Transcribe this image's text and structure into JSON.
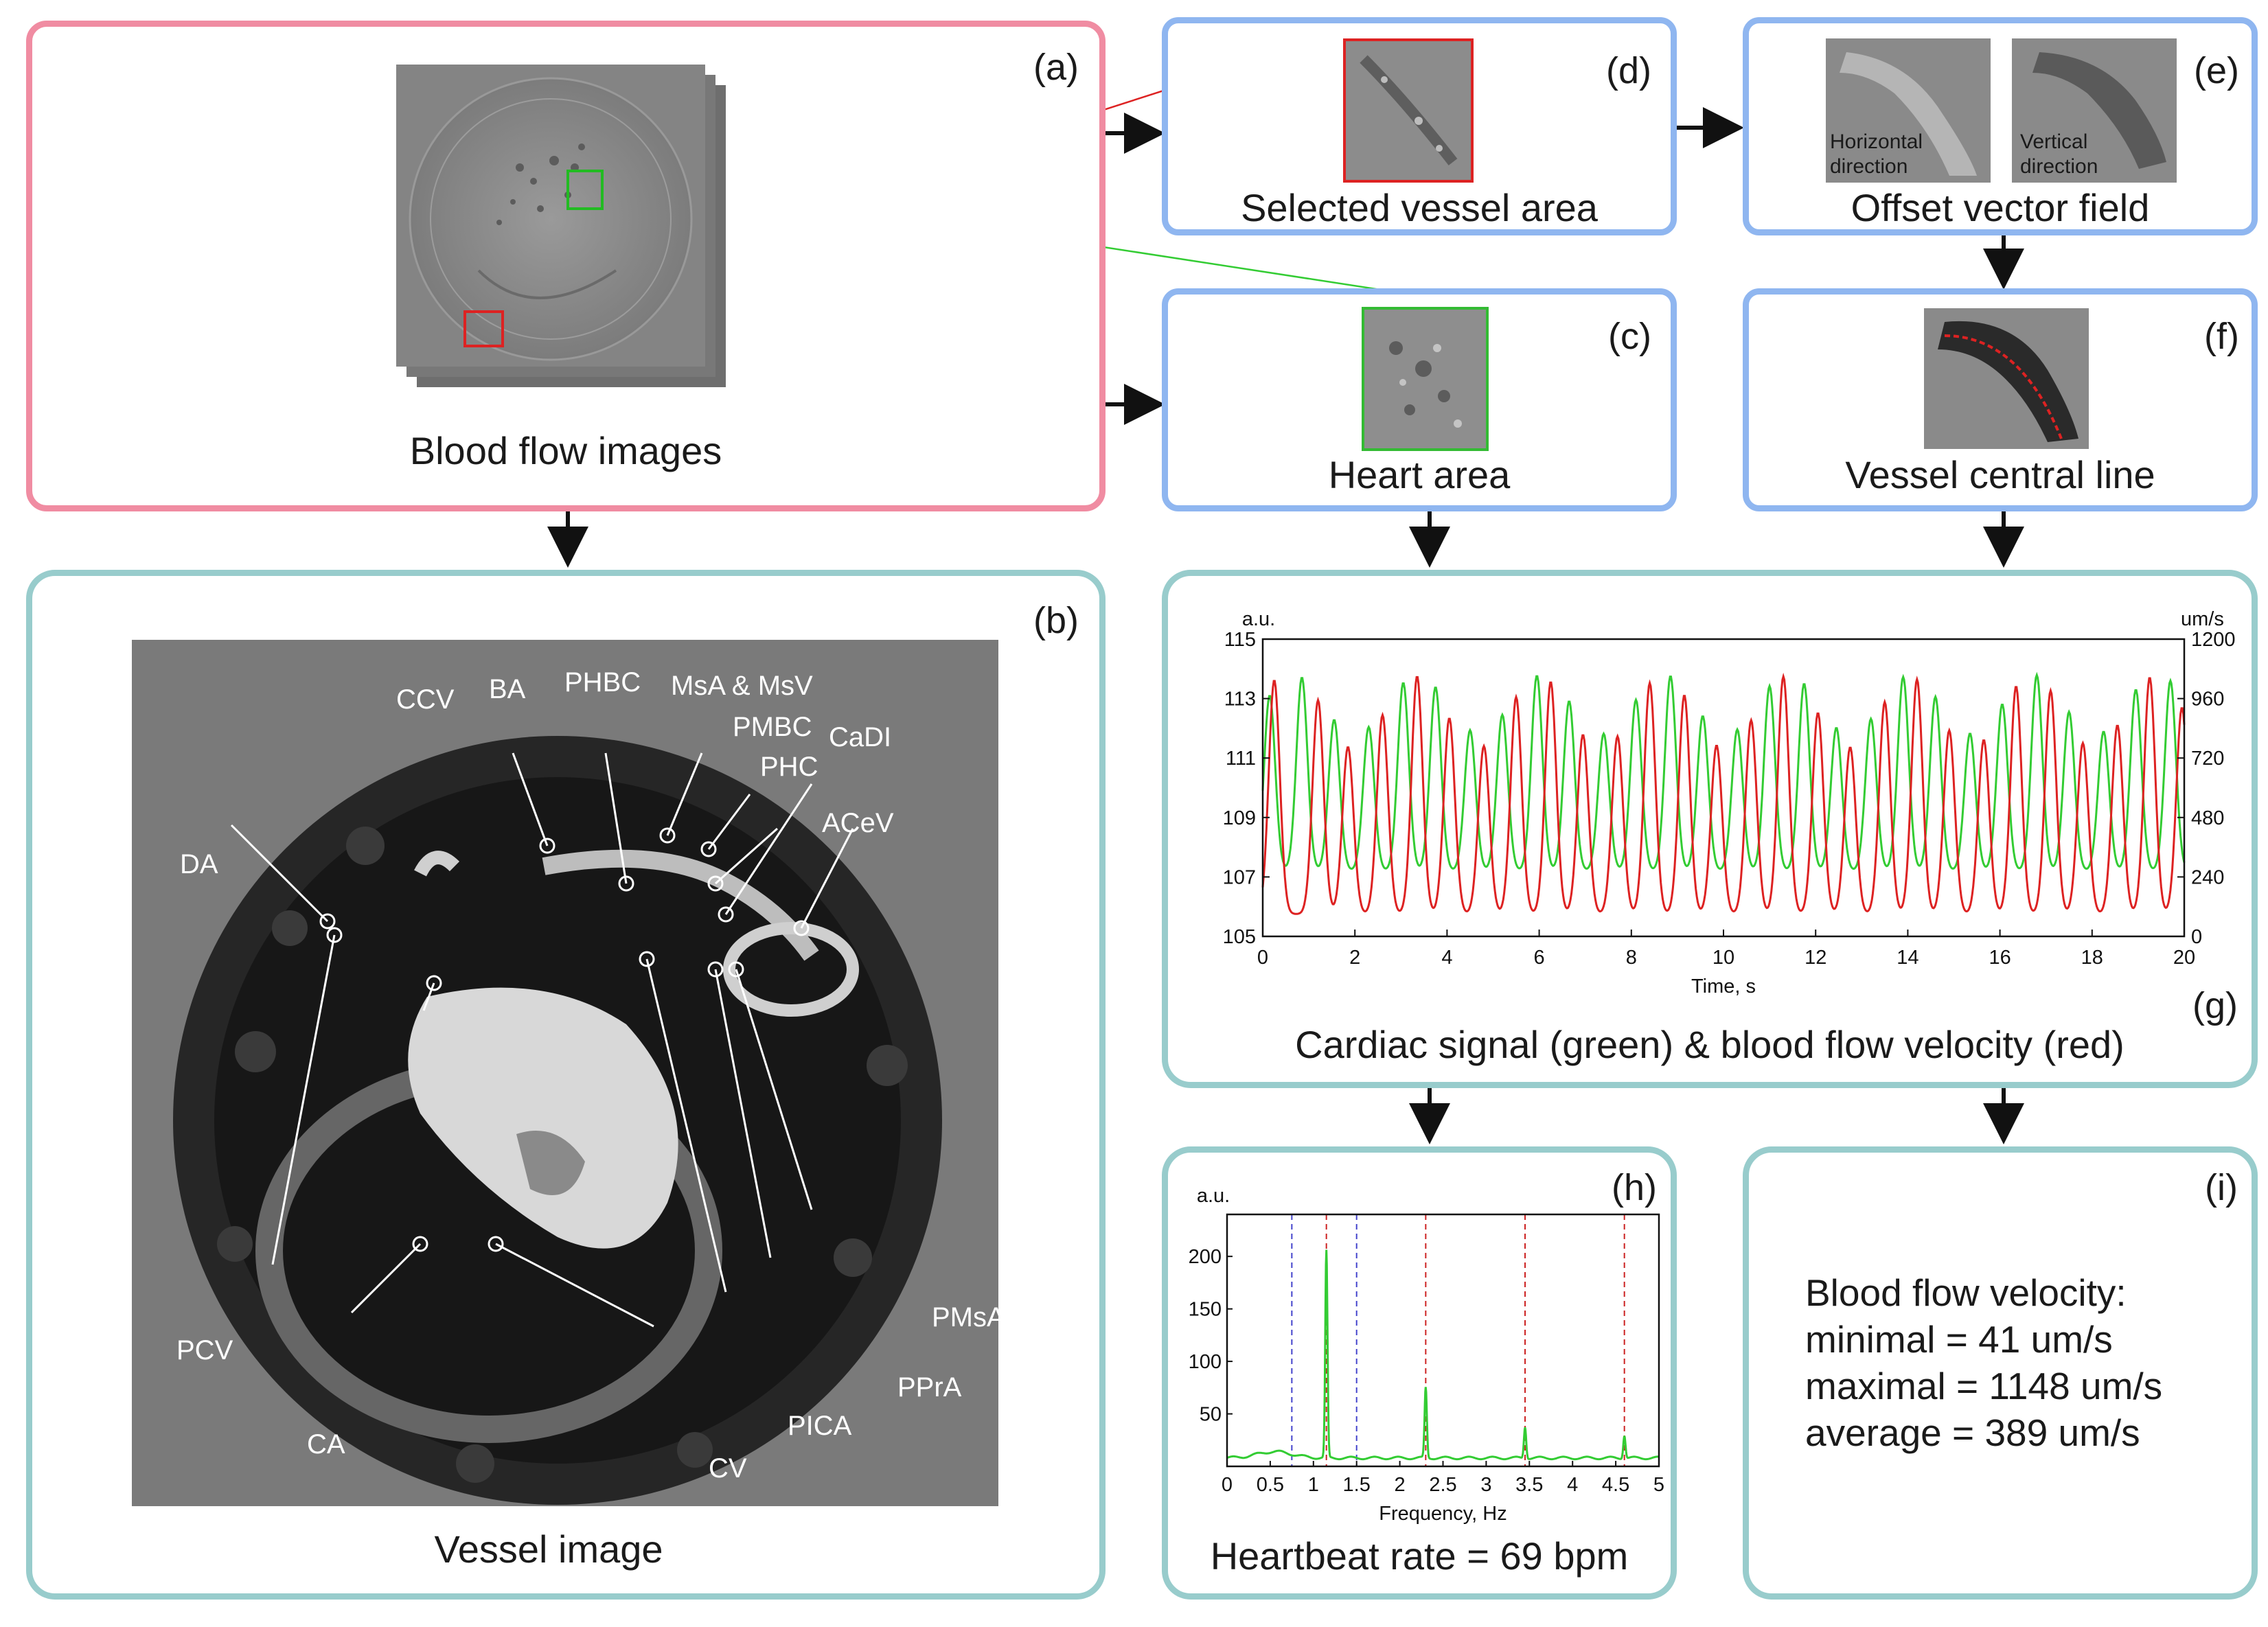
{
  "panel_a": {
    "tag": "(a)",
    "caption": "Blood flow images"
  },
  "panel_b": {
    "tag": "(b)",
    "caption": "Vessel image",
    "labels": [
      "CCV",
      "BA",
      "PHBC",
      "MsA & MsV",
      "PMBC",
      "PHC",
      "CaDI",
      "ACeV",
      "DA",
      "PCV",
      "CA",
      "CV",
      "PICA",
      "PPrA",
      "PMsA"
    ]
  },
  "panel_c": {
    "tag": "(c)",
    "caption": "Heart area"
  },
  "panel_d": {
    "tag": "(d)",
    "caption": "Selected vessel area"
  },
  "panel_e": {
    "tag": "(e)",
    "caption": "Offset vector field",
    "sub_left": [
      "Horizontal",
      "direction"
    ],
    "sub_right": [
      "Vertical",
      "direction"
    ]
  },
  "panel_f": {
    "tag": "(f)",
    "caption": "Vessel central line"
  },
  "panel_g": {
    "tag": "(g)",
    "caption": "Cardiac signal (green) & blood flow velocity (red)"
  },
  "panel_h": {
    "tag": "(h)",
    "caption": "Heartbeat rate = 69 bpm"
  },
  "panel_i": {
    "tag": "(i)",
    "line1": "Blood flow velocity:",
    "line2": "minimal = 41 um/s",
    "line3": "maximal = 1148 um/s",
    "line4": "average = 389 um/s"
  },
  "colors": {
    "pink": "#f08ca2",
    "blue": "#8fb6f0",
    "teal": "#98cccc",
    "green": "#33cc33",
    "red": "#dd2222"
  },
  "chart_data": [
    {
      "type": "line",
      "title": "Cardiac signal (green) & blood flow velocity (red)",
      "xlabel": "Time, s",
      "ylabel": "a.u.",
      "ylabel_right": "um/s",
      "xlim": [
        0,
        20
      ],
      "ylim": [
        105,
        115
      ],
      "ylim_right": [
        0,
        1200
      ],
      "x_ticks": [
        0,
        2,
        4,
        6,
        8,
        10,
        12,
        14,
        16,
        18,
        20
      ],
      "y_ticks": [
        105,
        107,
        109,
        111,
        113,
        115
      ],
      "y_ticks_right": [
        0,
        240,
        480,
        720,
        960,
        1200
      ],
      "series": [
        {
          "name": "Cardiac signal",
          "color": "green",
          "axis": "left",
          "beat_times": [
            0.15,
            0.85,
            1.55,
            2.3,
            3.05,
            3.75,
            4.5,
            5.2,
            5.95,
            6.65,
            7.4,
            8.1,
            8.85,
            9.55,
            10.3,
            11.0,
            11.75,
            12.45,
            13.2,
            13.9,
            14.6,
            15.35,
            16.05,
            16.8,
            17.5,
            18.25,
            18.95,
            19.7
          ],
          "baseline": 107.2,
          "peak": 113.8
        },
        {
          "name": "Blood flow velocity",
          "color": "red",
          "axis": "right",
          "beat_times": [
            0.25,
            1.2,
            1.85,
            2.6,
            3.35,
            4.05,
            4.8,
            5.5,
            6.25,
            6.95,
            7.7,
            8.4,
            9.15,
            9.85,
            10.6,
            11.3,
            12.05,
            12.75,
            13.5,
            14.2,
            14.9,
            15.65,
            16.35,
            17.1,
            17.8,
            18.55,
            19.25,
            19.95
          ],
          "baseline": 90,
          "peak": 1050
        }
      ]
    },
    {
      "type": "line",
      "xlabel": "Frequency, Hz",
      "ylabel": "a.u.",
      "xlim": [
        0,
        5
      ],
      "ylim": [
        0,
        240
      ],
      "x_ticks": [
        0,
        0.5,
        1,
        1.5,
        2,
        2.5,
        3,
        3.5,
        4,
        4.5,
        5
      ],
      "x_tick_labels": [
        "0",
        "0.5",
        "1",
        "1.5",
        "2",
        "2.5",
        "3",
        "3.5",
        "4",
        "4.5",
        "5"
      ],
      "y_ticks": [
        50,
        100,
        150,
        200
      ],
      "peaks": [
        {
          "x": 1.15,
          "y": 205
        },
        {
          "x": 2.3,
          "y": 75
        },
        {
          "x": 3.45,
          "y": 38
        },
        {
          "x": 4.6,
          "y": 30
        }
      ],
      "red_dashed_lines": [
        1.15,
        2.3,
        3.45,
        4.6
      ],
      "blue_dashed_lines": [
        0.75,
        1.5
      ]
    }
  ]
}
